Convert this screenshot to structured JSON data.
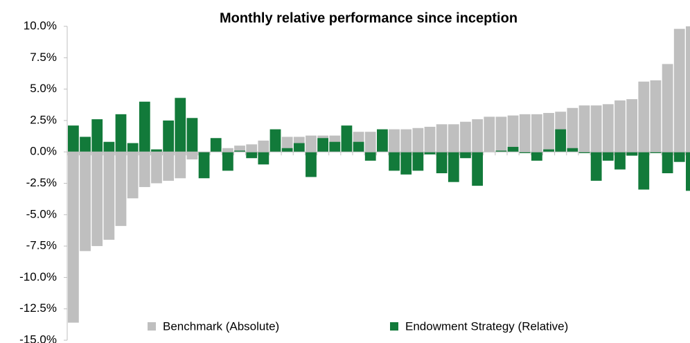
{
  "chart_data": {
    "type": "bar",
    "title": "Monthly relative performance since inception",
    "categories": [
      null,
      null,
      null,
      null,
      null,
      null,
      null,
      null,
      null,
      null,
      null,
      null,
      null,
      null,
      null,
      null,
      null,
      null,
      null,
      null,
      null,
      null,
      null,
      null,
      null,
      null,
      null,
      null,
      null,
      null,
      null,
      null,
      null,
      null,
      null,
      null,
      null,
      null,
      null,
      null,
      null,
      null,
      null,
      null,
      null,
      null,
      null,
      null,
      null,
      null,
      null,
      null,
      null
    ],
    "series": [
      {
        "name": "Benchmark (Absolute)",
        "color": "#bfbfbf",
        "values": [
          -13.6,
          -7.9,
          -7.5,
          -7.0,
          -5.9,
          -3.7,
          -2.8,
          -2.5,
          -2.3,
          -2.1,
          -0.6,
          -0.1,
          0.0,
          0.3,
          0.5,
          0.6,
          0.9,
          1.0,
          1.2,
          1.2,
          1.3,
          1.3,
          1.3,
          1.4,
          1.6,
          1.6,
          1.6,
          1.8,
          1.8,
          1.9,
          2.0,
          2.2,
          2.2,
          2.4,
          2.6,
          2.8,
          2.8,
          2.9,
          3.0,
          3.0,
          3.1,
          3.2,
          3.5,
          3.7,
          3.7,
          3.8,
          4.1,
          4.2,
          5.6,
          5.7,
          7.0,
          9.8,
          10.0
        ]
      },
      {
        "name": "Endowment Strategy (Relative)",
        "color": "#127a3a",
        "values": [
          2.1,
          1.2,
          2.6,
          0.8,
          3.0,
          0.7,
          4.0,
          0.2,
          2.5,
          4.3,
          2.7,
          -2.1,
          1.1,
          -1.5,
          0.1,
          -0.5,
          -1.0,
          1.8,
          0.3,
          0.7,
          -2.0,
          1.1,
          0.8,
          2.1,
          0.8,
          -0.7,
          1.8,
          -1.5,
          -1.8,
          -1.5,
          -0.2,
          -1.7,
          -2.4,
          -0.5,
          -2.7,
          0.0,
          0.1,
          0.4,
          -0.1,
          -0.7,
          0.2,
          1.8,
          0.3,
          -0.1,
          -2.3,
          -0.7,
          -1.4,
          -0.3,
          -3.0,
          -0.1,
          -1.7,
          -0.8,
          -3.1
        ]
      }
    ],
    "ylim": [
      -15,
      10
    ],
    "yticks": [
      {
        "value": -15,
        "label": "-15.0%"
      },
      {
        "value": -12.5,
        "label": "-12.5%"
      },
      {
        "value": -10,
        "label": "-10.0%"
      },
      {
        "value": -7.5,
        "label": "-7.5%"
      },
      {
        "value": -5,
        "label": "-5.0%"
      },
      {
        "value": -2.5,
        "label": "-2.5%"
      },
      {
        "value": 0,
        "label": "0.0%"
      },
      {
        "value": 2.5,
        "label": "2.5%"
      },
      {
        "value": 5,
        "label": "5.0%"
      },
      {
        "value": 7.5,
        "label": "7.5%"
      },
      {
        "value": 10,
        "label": "10.0%"
      }
    ],
    "grid": false,
    "legend": "bottom"
  }
}
